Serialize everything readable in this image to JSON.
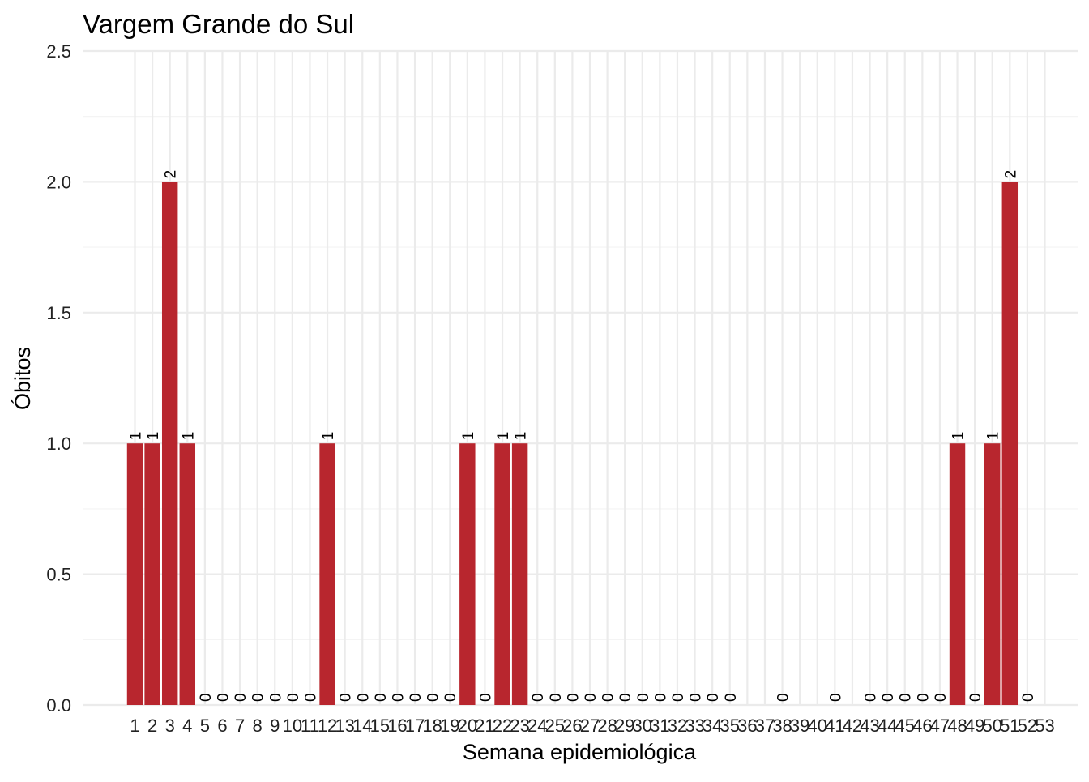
{
  "colors": {
    "bar": "#B8262E",
    "background": "#ffffff",
    "grid_major": "#ebebeb",
    "grid_minor": "#f3f3f3"
  },
  "chart_data": {
    "type": "bar",
    "title": "Vargem Grande do Sul",
    "xlabel": "Semana epidemiológica",
    "ylabel": "Óbitos",
    "ylim": [
      0,
      2.5
    ],
    "yticks": [
      "0.0",
      "0.5",
      "1.0",
      "1.5",
      "2.0",
      "2.5"
    ],
    "grid": true,
    "legend": "none",
    "categories": [
      "1",
      "2",
      "3",
      "4",
      "5",
      "6",
      "7",
      "8",
      "9",
      "10",
      "11",
      "12",
      "13",
      "14",
      "15",
      "16",
      "17",
      "18",
      "19",
      "20",
      "21",
      "22",
      "23",
      "24",
      "25",
      "26",
      "27",
      "28",
      "29",
      "30",
      "31",
      "32",
      "33",
      "34",
      "35",
      "36",
      "37",
      "38",
      "39",
      "40",
      "41",
      "42",
      "43",
      "44",
      "45",
      "46",
      "47",
      "48",
      "49",
      "50",
      "51",
      "52",
      "53"
    ],
    "values": [
      1,
      1,
      2,
      1,
      0,
      0,
      0,
      0,
      0,
      0,
      0,
      1,
      0,
      0,
      0,
      0,
      0,
      0,
      0,
      1,
      0,
      1,
      1,
      0,
      0,
      0,
      0,
      0,
      0,
      0,
      0,
      0,
      0,
      0,
      0,
      null,
      null,
      0,
      null,
      null,
      0,
      null,
      0,
      0,
      0,
      0,
      0,
      1,
      0,
      1,
      2,
      0,
      null
    ],
    "data_labels": [
      "1",
      "1",
      "2",
      "1",
      "0",
      "0",
      "0",
      "0",
      "0",
      "0",
      "0",
      "1",
      "0",
      "0",
      "0",
      "0",
      "0",
      "0",
      "0",
      "1",
      "0",
      "1",
      "1",
      "0",
      "0",
      "0",
      "0",
      "0",
      "0",
      "0",
      "0",
      "0",
      "0",
      "0",
      "0",
      "",
      "",
      "0",
      "",
      "",
      "0",
      "",
      "0",
      "0",
      "0",
      "0",
      "0",
      "1",
      "0",
      "1",
      "2",
      "0",
      ""
    ]
  }
}
